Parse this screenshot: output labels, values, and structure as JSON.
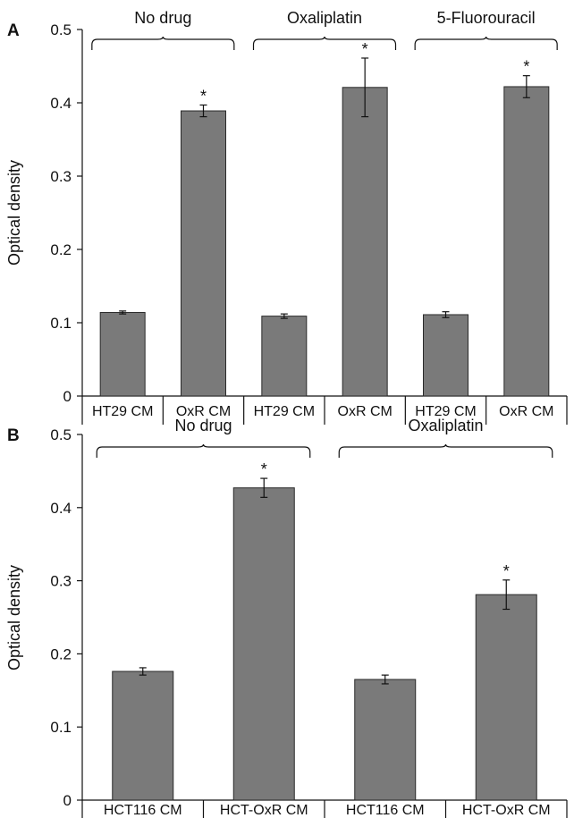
{
  "chart_data": [
    {
      "panel": "A",
      "type": "bar",
      "ylabel": "Optical density",
      "ylim": [
        0,
        0.5
      ],
      "yticks": [
        0,
        0.1,
        0.2,
        0.3,
        0.4,
        0.5
      ],
      "ytick_labels": [
        "0",
        "0.1",
        "0.2",
        "0.3",
        "0.4",
        "0.5"
      ],
      "categories": [
        "HT29 CM",
        "OxR CM",
        "HT29 CM",
        "OxR CM",
        "HT29 CM",
        "OxR CM"
      ],
      "values": [
        0.114,
        0.389,
        0.109,
        0.421,
        0.111,
        0.422
      ],
      "errors": [
        0.002,
        0.008,
        0.003,
        0.04,
        0.004,
        0.015
      ],
      "significant": [
        false,
        true,
        false,
        true,
        false,
        true
      ],
      "significance_marker": "*",
      "groups": [
        {
          "label": "No drug",
          "start": 0,
          "end": 1
        },
        {
          "label": "Oxaliplatin",
          "start": 2,
          "end": 3
        },
        {
          "label": "5-Fluorouracil",
          "start": 4,
          "end": 5
        }
      ],
      "bar_color": "#7a7a7a"
    },
    {
      "panel": "B",
      "type": "bar",
      "ylabel": "Optical density",
      "ylim": [
        0,
        0.5
      ],
      "yticks": [
        0,
        0.1,
        0.2,
        0.3,
        0.4,
        0.5
      ],
      "ytick_labels": [
        "0",
        "0.1",
        "0.2",
        "0.3",
        "0.4",
        "0.5"
      ],
      "categories": [
        "HCT116 CM",
        "HCT-OxR CM",
        "HCT116 CM",
        "HCT-OxR CM"
      ],
      "values": [
        0.176,
        0.427,
        0.165,
        0.281
      ],
      "errors": [
        0.005,
        0.013,
        0.006,
        0.02
      ],
      "significant": [
        false,
        true,
        false,
        true
      ],
      "significance_marker": "*",
      "groups": [
        {
          "label": "No drug",
          "start": 0,
          "end": 1
        },
        {
          "label": "Oxaliplatin",
          "start": 2,
          "end": 3
        }
      ],
      "bar_color": "#7a7a7a"
    }
  ]
}
